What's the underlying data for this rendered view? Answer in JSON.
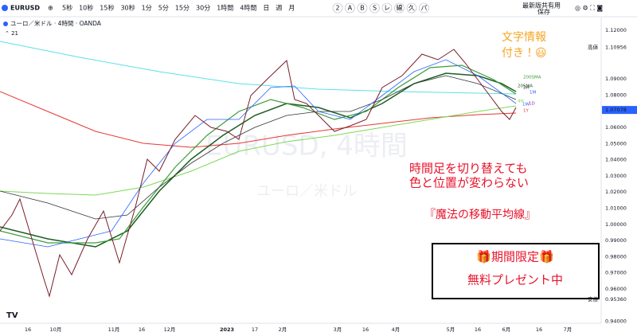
{
  "toolbar": {
    "symbol": "EURUSD",
    "intervals": [
      "5秒",
      "10秒",
      "15秒",
      "30秒",
      "1分",
      "5分",
      "15分",
      "30分",
      "1時間",
      "4時間",
      "日",
      "週",
      "月"
    ],
    "active_interval": 9,
    "tools": [
      "2",
      "A",
      "B",
      "S",
      "レ",
      "線",
      "久",
      "パ"
    ],
    "layout_name": "最新版共有用",
    "save": "保存"
  },
  "legend": {
    "title": "ユーロ／米ドル · 4時間 · OANDA",
    "indicator": "21"
  },
  "watermark": {
    "symbol": "EURUSD, 4時間",
    "name": "ユーロ／米ドル"
  },
  "price_axis": {
    "ticks": [
      "1.12000",
      "1.09000",
      "1.08000",
      "1.06000",
      "1.05000",
      "1.04000",
      "1.03000",
      "1.02000",
      "1.01000",
      "1.00000",
      "0.99000",
      "0.98000",
      "0.97000",
      "0.96000",
      "0.94000"
    ],
    "high": {
      "label": "高値",
      "price": "1.10956"
    },
    "current": "1.07078",
    "low": {
      "label": "安値",
      "price": "0.95360"
    }
  },
  "time_axis": [
    "16",
    "10月",
    "11月",
    "16",
    "12月",
    "2023",
    "17",
    "2月",
    "3月",
    "16",
    "4月",
    "5月",
    "16",
    "6月",
    "16",
    "7月"
  ],
  "ma_labels": [
    "200SMA",
    "20SMA",
    "3H",
    "1M",
    "4H",
    "1W",
    "1D",
    "1Y"
  ],
  "annotations": {
    "note": [
      "文字情報",
      "付き！😃"
    ],
    "headline": [
      "時間足を切り替えても",
      "色と位置が変わらない"
    ],
    "product": "『魔法の移動平均線』",
    "offer": [
      "🎁期間限定🎁",
      "無料プレゼント中"
    ]
  }
}
